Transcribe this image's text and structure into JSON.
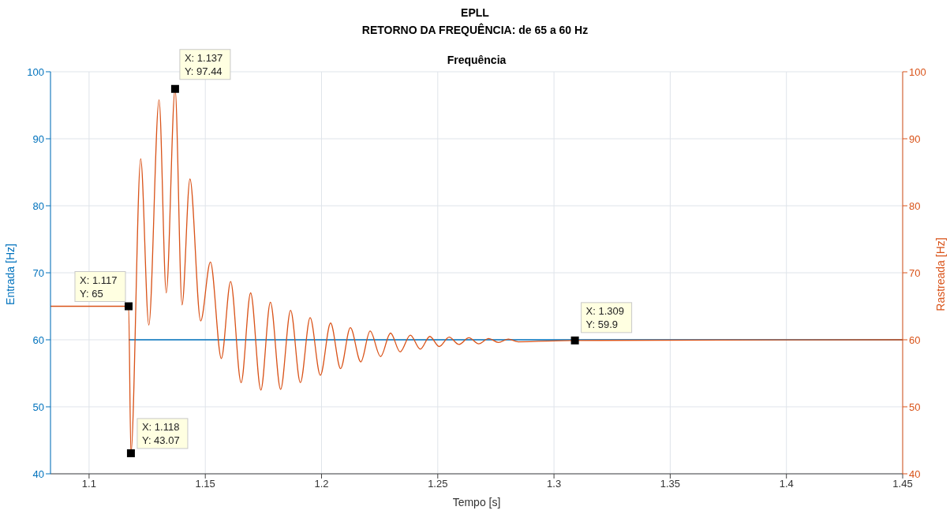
{
  "chart_data": {
    "type": "line",
    "title": "EPLL",
    "subtitle": "RETORNO DA FREQUÊNCIA: de 65 a 60 Hz",
    "xlabel": "Tempo [s]",
    "ylabel": "Entrada [Hz]",
    "y2label": "Rastreada [Hz]",
    "xlim": [
      1.0834,
      1.45
    ],
    "xticks": [
      1.1,
      1.15,
      1.2,
      1.25,
      1.3,
      1.35,
      1.4,
      1.45
    ],
    "ylim": [
      40,
      100
    ],
    "yticks": [
      40,
      50,
      60,
      70,
      80,
      90,
      100
    ],
    "y2lim": [
      40,
      100
    ],
    "y2ticks": [
      40,
      50,
      60,
      70,
      80,
      90,
      100
    ],
    "grid": true,
    "legend": false,
    "marker": "none",
    "line_style": "solid",
    "series": [
      {
        "color": "#0072bd",
        "x": [
          1.117,
          1.45
        ],
        "values": [
          60,
          60
        ]
      },
      {
        "color": "#d95319",
        "axis": "y2",
        "x": [
          1.0834,
          1.117,
          1.118,
          1.1222,
          1.1257,
          1.1301,
          1.1332,
          1.137,
          1.14,
          1.1434,
          1.148,
          1.1522,
          1.1569,
          1.1609,
          1.1654,
          1.1695,
          1.1739,
          1.178,
          1.1824,
          1.1867,
          1.1909,
          1.1951,
          1.1995,
          1.2039,
          1.2082,
          1.2124,
          1.2169,
          1.2209,
          1.2254,
          1.2297,
          1.2338,
          1.2382,
          1.2425,
          1.2466,
          1.2506,
          1.2549,
          1.2591,
          1.2634,
          1.2676,
          1.2719,
          1.2761,
          1.2804,
          1.2846,
          1.309,
          1.45
        ],
        "values": [
          65,
          65,
          43.07,
          87.0,
          62.2,
          95.8,
          67.0,
          97.44,
          65.2,
          84.0,
          62.8,
          71.6,
          57.2,
          68.7,
          53.6,
          67.0,
          52.5,
          65.6,
          52.6,
          64.4,
          53.6,
          63.3,
          54.7,
          62.5,
          55.7,
          61.8,
          56.7,
          61.3,
          57.5,
          61.0,
          58.2,
          60.7,
          58.6,
          60.5,
          59.0,
          60.4,
          59.3,
          60.3,
          59.4,
          60.2,
          59.6,
          60.1,
          59.7,
          59.9,
          60
        ]
      }
    ],
    "annotations": [
      "Frequência",
      {
        "text": "X: 1.117\nY: 65",
        "x": 1.117,
        "y": 65
      },
      {
        "text": "X: 1.118\nY: 43.07",
        "x": 1.118,
        "y": 43.07
      },
      {
        "text": "X: 1.137\nY: 97.44",
        "x": 1.137,
        "y": 97.44
      },
      {
        "text": "X: 1.309\nY: 59.9",
        "x": 1.309,
        "y": 59.9
      }
    ]
  }
}
